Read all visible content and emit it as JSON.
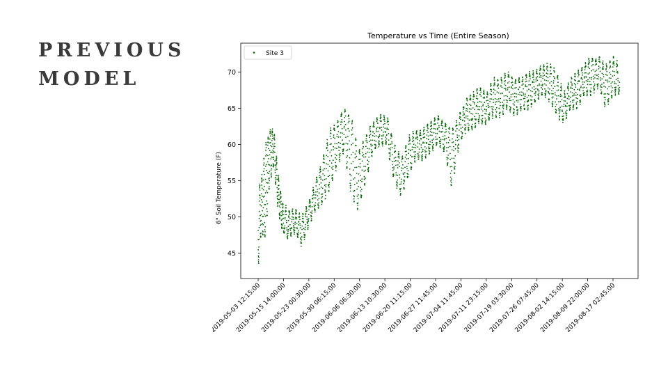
{
  "slide": {
    "title_line1": "PREVIOUS",
    "title_line2": "MODEL"
  },
  "chart_data": {
    "type": "scatter",
    "title": "Temperature vs Time (Entire Season)",
    "xlabel": "",
    "ylabel": "6\" Soil Temperature (F)",
    "ylim": [
      41.5,
      74.0
    ],
    "yticks": [
      45,
      50,
      55,
      60,
      65,
      70
    ],
    "xticks": [
      "2019-05-03 12:15:00",
      "2019-05-15 14:00:00",
      "2019-05-23 00:30:00",
      "2019-05-30 06:15:00",
      "2019-06-06 06:30:00",
      "2019-06-13 10:30:00",
      "2019-06-20 11:15:00",
      "2019-06-27 11:45:00",
      "2019-07-04 11:45:00",
      "2019-07-11 23:15:00",
      "2019-07-19 03:30:00",
      "2019-07-26 07:45:00",
      "2019-08-02 14:15:00",
      "2019-08-09 22:00:00",
      "2019-08-17 02:45:00"
    ],
    "legend": "top-left",
    "grid": false,
    "colors": {
      "series": "#006400",
      "axis": "#000000"
    },
    "series": [
      {
        "name": "Site 3",
        "x": [
          "2019-05-03 12:15:00",
          "2019-05-05",
          "2019-05-07",
          "2019-05-09",
          "2019-05-11",
          "2019-05-13",
          "2019-05-15",
          "2019-05-17",
          "2019-05-19",
          "2019-05-21",
          "2019-05-23",
          "2019-05-25",
          "2019-05-27",
          "2019-05-29",
          "2019-05-31",
          "2019-06-02",
          "2019-06-04",
          "2019-06-06",
          "2019-06-08",
          "2019-06-10",
          "2019-06-12",
          "2019-06-14",
          "2019-06-16",
          "2019-06-18",
          "2019-06-20",
          "2019-06-22",
          "2019-06-24",
          "2019-06-26",
          "2019-06-28",
          "2019-06-30",
          "2019-07-02",
          "2019-07-04",
          "2019-07-06",
          "2019-07-08",
          "2019-07-10",
          "2019-07-12",
          "2019-07-14",
          "2019-07-16",
          "2019-07-18",
          "2019-07-20",
          "2019-07-22",
          "2019-07-24",
          "2019-07-26",
          "2019-07-28",
          "2019-07-30",
          "2019-08-01",
          "2019-08-03",
          "2019-08-05",
          "2019-08-07",
          "2019-08-09",
          "2019-08-11",
          "2019-08-13",
          "2019-08-15",
          "2019-08-17 02:45:00",
          "2019-08-19"
        ],
        "y_low": [
          43,
          48,
          47,
          55,
          57,
          51,
          48,
          47,
          48,
          46,
          49,
          51,
          52,
          54,
          57,
          59,
          53,
          51,
          55,
          59,
          60,
          60,
          55,
          53,
          56,
          58,
          58,
          59,
          60,
          59,
          54,
          60,
          62,
          62,
          63,
          63,
          64,
          64,
          65,
          64,
          65,
          65,
          66,
          67,
          66,
          64,
          63,
          65,
          65,
          67,
          67,
          68,
          65,
          67,
          67
        ],
        "y_high": [
          54,
          55,
          60,
          62,
          62,
          56,
          52,
          51,
          51,
          50,
          52,
          55,
          58,
          62,
          63,
          65,
          64,
          59,
          61,
          63,
          64,
          64,
          60,
          58,
          61,
          62,
          62,
          63,
          64,
          63,
          62,
          64,
          66,
          67,
          68,
          67,
          69,
          69,
          70,
          69,
          69,
          70,
          70,
          71,
          71,
          70,
          67,
          69,
          70,
          71,
          72,
          72,
          71,
          72,
          71
        ]
      }
    ]
  }
}
